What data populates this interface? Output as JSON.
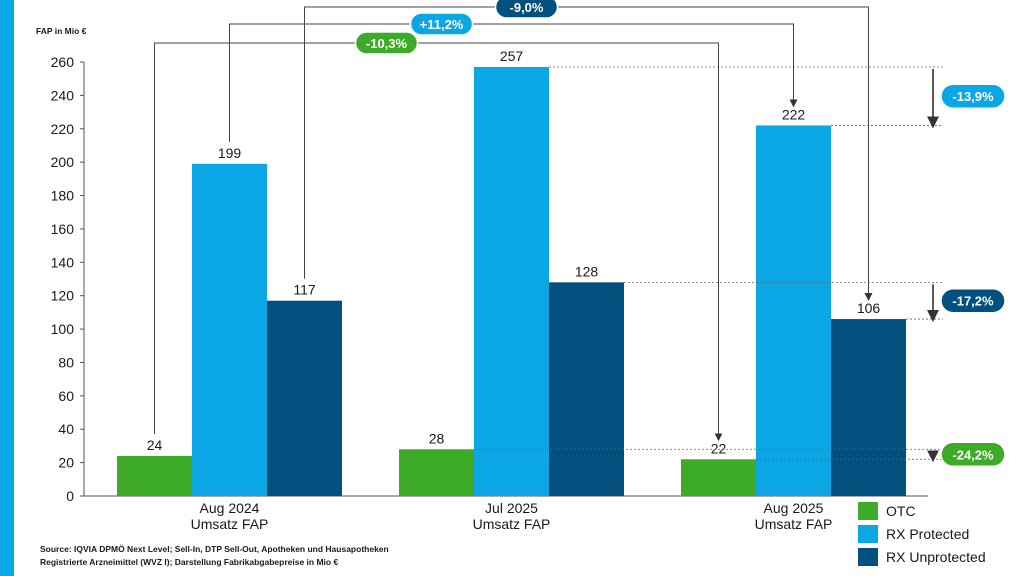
{
  "colors": {
    "otc": "#3daa28",
    "rx_protected": "#0aa6e6",
    "rx_unprotected": "#03507f",
    "left_bar": "#0aa6e6"
  },
  "chart_data": {
    "type": "bar",
    "ylabel": "FAP in Mio €",
    "ylim": [
      0,
      260
    ],
    "yticks": [
      0,
      20,
      40,
      60,
      80,
      100,
      120,
      140,
      160,
      180,
      200,
      220,
      240,
      260
    ],
    "categories": [
      {
        "line1": "Aug 2024",
        "line2": "Umsatz FAP"
      },
      {
        "line1": "Jul 2025",
        "line2": "Umsatz FAP"
      },
      {
        "line1": "Aug 2025",
        "line2": "Umsatz FAP"
      }
    ],
    "series": [
      {
        "name": "OTC",
        "key": "otc",
        "values": [
          24,
          28,
          22
        ]
      },
      {
        "name": "RX Protected",
        "key": "rx_protected",
        "values": [
          199,
          257,
          222
        ]
      },
      {
        "name": "RX Unprotected",
        "key": "rx_unprotected",
        "values": [
          117,
          128,
          106
        ]
      }
    ],
    "annotations": {
      "yoy": [
        {
          "label": "-10,3%",
          "series": "otc",
          "color": "#3daa28"
        },
        {
          "label": "+11,2%",
          "series": "rx_protected",
          "color": "#0aa6e6"
        },
        {
          "label": "-9,0%",
          "series": "rx_unprotected",
          "color": "#03507f"
        }
      ],
      "mom": [
        {
          "label": "-13,9%",
          "series": "rx_protected",
          "color": "#0aa6e6"
        },
        {
          "label": "-17,2%",
          "series": "rx_unprotected",
          "color": "#03507f"
        },
        {
          "label": "-24,2%",
          "series": "otc",
          "color": "#3daa28"
        }
      ]
    }
  },
  "legend": {
    "otc": "OTC",
    "rx_protected": "RX Protected",
    "rx_unprotected": "RX Unprotected"
  },
  "source": {
    "line1": "Source: IQVIA DPMÖ Next Level; Sell-In, DTP Sell-Out, Apotheken und Hausapotheken",
    "line2": "Registrierte Arzneimittel (WVZ I); Darstellung Fabrikabgabepreise in Mio €"
  }
}
